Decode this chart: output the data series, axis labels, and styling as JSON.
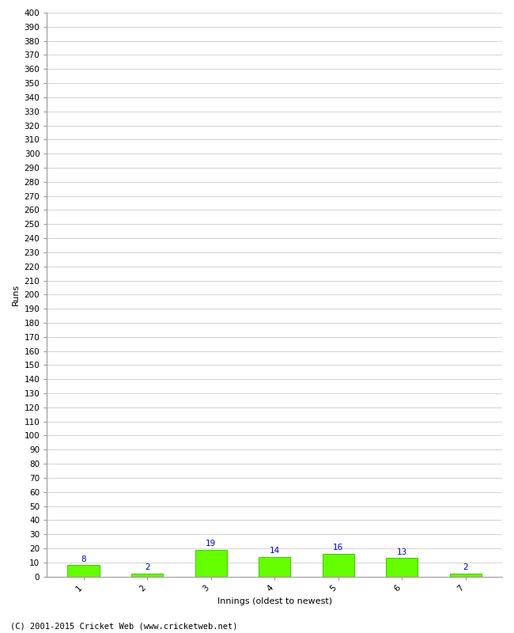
{
  "categories": [
    "1",
    "2",
    "3",
    "4",
    "5",
    "6",
    "7"
  ],
  "values": [
    8,
    2,
    19,
    14,
    16,
    13,
    2
  ],
  "bar_color": "#66ff00",
  "bar_edge_color": "#44cc00",
  "xlabel": "Innings (oldest to newest)",
  "ylabel": "Runs",
  "ylim": [
    0,
    400
  ],
  "ytick_step": 10,
  "label_color": "#0000cc",
  "footer": "(C) 2001-2015 Cricket Web (www.cricketweb.net)",
  "background_color": "#ffffff",
  "grid_color": "#cccccc",
  "axis_fontsize": 7.5,
  "label_fontsize": 7.5,
  "footer_fontsize": 7.5,
  "xlabel_fontsize": 8,
  "ylabel_fontsize": 8
}
